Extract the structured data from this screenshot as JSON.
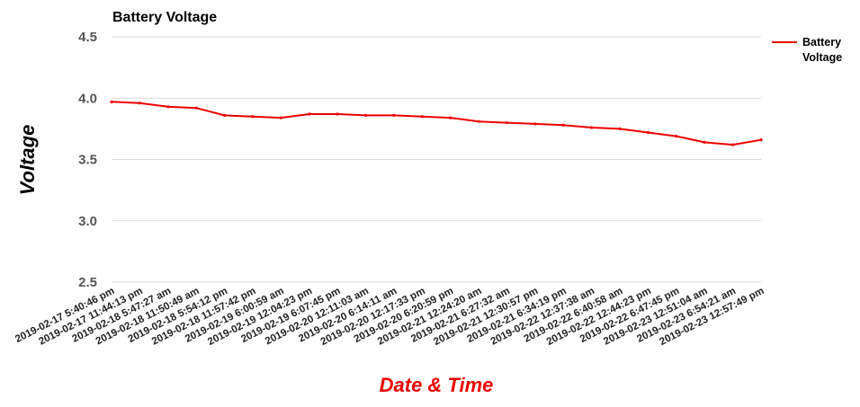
{
  "chart_data": {
    "type": "line",
    "title": "Battery Voltage",
    "xlabel": "Date & Time",
    "ylabel": "Voltage",
    "ylim": [
      2.5,
      4.5
    ],
    "yticks": [
      "2.5",
      "3.0",
      "3.5",
      "4.0",
      "4.5"
    ],
    "grid": true,
    "legend_position": "top-right",
    "categories": [
      "2019-02-17 5:40:46 pm",
      "2019-02-17 11:44:13 pm",
      "2019-02-18 5:47:27 am",
      "2019-02-18 11:50:49 am",
      "2019-02-18 5:54:12 pm",
      "2019-02-18 11:57:42 pm",
      "2019-02-19 6:00:59 am",
      "2019-02-19 12:04:23 pm",
      "2019-02-19 6:07:45 pm",
      "2019-02-20 12:11:03 am",
      "2019-02-20 6:14:11 am",
      "2019-02-20 12:17:33 pm",
      "2019-02-20 6:20:59 pm",
      "2019-02-21 12:24:20 am",
      "2019-02-21 6:27:32 am",
      "2019-02-21 12:30:57 pm",
      "2019-02-21 6:34:19 pm",
      "2019-02-22 12:37:38 am",
      "2019-02-22 6:40:58 am",
      "2019-02-22 12:44:23 pm",
      "2019-02-22 6:47:45 pm",
      "2019-02-23 12:51:04 am",
      "2019-02-23 6:54:21 am",
      "2019-02-23 12:57:49 pm"
    ],
    "series": [
      {
        "name": "Battery Voltage",
        "color": "#ee0000",
        "values": [
          3.97,
          3.96,
          3.93,
          3.92,
          3.86,
          3.85,
          3.84,
          3.87,
          3.87,
          3.86,
          3.86,
          3.85,
          3.84,
          3.81,
          3.8,
          3.79,
          3.78,
          3.76,
          3.75,
          3.72,
          3.69,
          3.64,
          3.62,
          3.66
        ]
      }
    ]
  }
}
